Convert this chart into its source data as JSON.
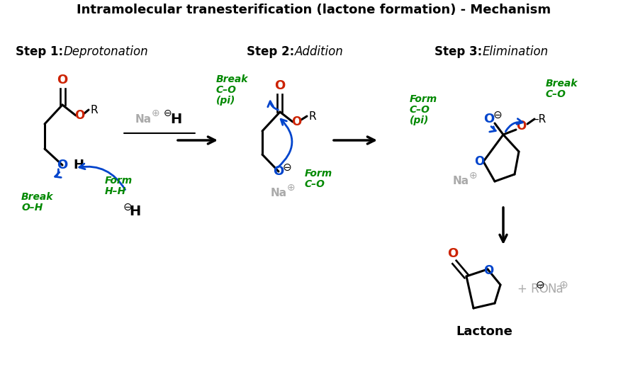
{
  "title": "Intramolecular tranesterification (lactone formation) - Mechanism",
  "title_fontsize": 13,
  "bg_color": "#ffffff",
  "black": "#000000",
  "red": "#cc2200",
  "blue": "#0044cc",
  "green": "#008800",
  "gray": "#aaaaaa",
  "step1_label": "Step 1:",
  "step1_italic": "Deprotonation",
  "step2_label": "Step 2:",
  "step2_italic": "Addition",
  "step3_label": "Step 3:",
  "step3_italic": "Elimination",
  "lactone_label": "Lactone"
}
